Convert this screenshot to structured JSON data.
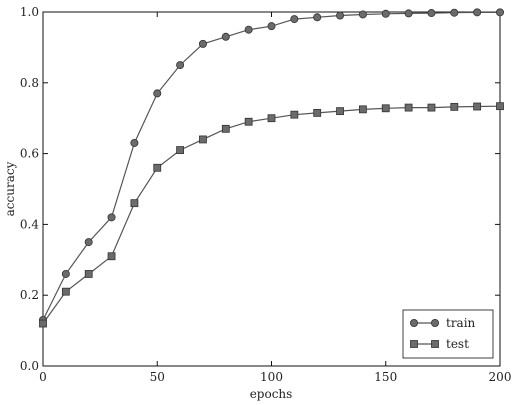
{
  "chart_data": {
    "type": "line",
    "title": "",
    "xlabel": "epochs",
    "ylabel": "accuracy",
    "xlim": [
      0,
      200
    ],
    "ylim": [
      0.0,
      1.0
    ],
    "xticks": [
      "0",
      "50",
      "100",
      "150",
      "200"
    ],
    "yticks": [
      "0.0",
      "0.2",
      "0.4",
      "0.6",
      "0.8",
      "1.0"
    ],
    "grid": false,
    "legend_position": "bottom-right",
    "x": [
      0,
      10,
      20,
      30,
      40,
      50,
      60,
      70,
      80,
      90,
      100,
      110,
      120,
      130,
      140,
      150,
      160,
      170,
      180,
      190,
      200
    ],
    "series": [
      {
        "name": "train",
        "marker": "circle",
        "color": "#555555",
        "values": [
          0.13,
          0.26,
          0.35,
          0.42,
          0.63,
          0.77,
          0.85,
          0.91,
          0.93,
          0.95,
          0.96,
          0.98,
          0.985,
          0.99,
          0.993,
          0.995,
          0.996,
          0.997,
          0.998,
          0.999,
          0.999
        ]
      },
      {
        "name": "test",
        "marker": "square",
        "color": "#555555",
        "values": [
          0.12,
          0.21,
          0.26,
          0.31,
          0.46,
          0.56,
          0.61,
          0.64,
          0.67,
          0.69,
          0.7,
          0.71,
          0.715,
          0.72,
          0.725,
          0.728,
          0.73,
          0.73,
          0.732,
          0.733,
          0.734
        ]
      }
    ]
  }
}
